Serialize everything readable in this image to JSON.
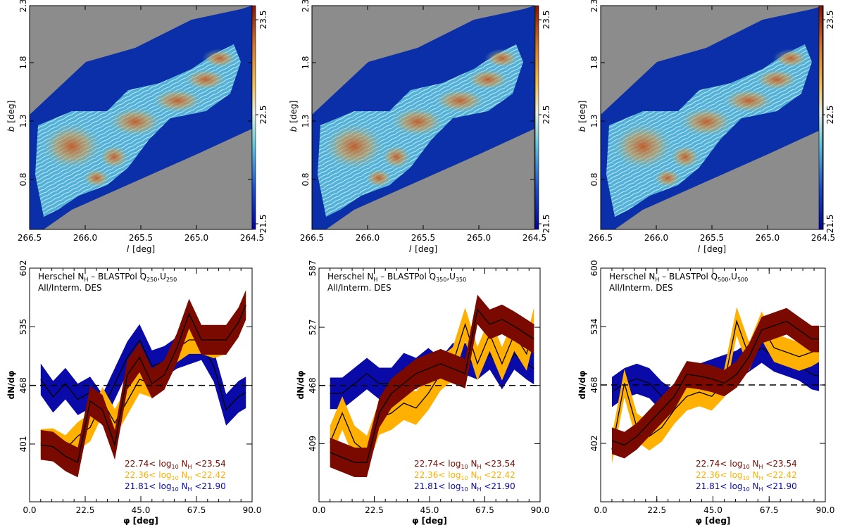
{
  "maps": {
    "xlabel_sym": "l",
    "xlabel_unit": "[deg]",
    "ylabel_sym": "b",
    "ylabel_unit": "[deg]",
    "xticks": [
      "266.5",
      "266.0",
      "265.5",
      "265.0",
      "264.5"
    ],
    "yticks": [
      "0.8",
      "1.3",
      "1.8",
      "2.3"
    ],
    "colorbar_ticks": [
      "21.5",
      "22.5",
      "23.5"
    ],
    "colors": {
      "background": "#8c8c8c",
      "low": "#0a2fa8",
      "mid": "#5ec8e0",
      "high": "#b8431e",
      "lines": "#ffffff"
    }
  },
  "chart_data": [
    {
      "type": "line",
      "title_line1_prefix": "Herschel N",
      "title_line1_sub": "H",
      "title_line1_mid": " – BLASTPol Q",
      "title_q_sub": "250",
      "title_u": ",U",
      "title_u_sub": "250",
      "title_line2": "All/Interm. DES",
      "xlabel": "φ [deg]",
      "ylabel": "dN/dφ",
      "xlim": [
        0,
        90
      ],
      "ylim": [
        335,
        602
      ],
      "xticks": [
        "0.0",
        "22.5",
        "45.0",
        "67.5",
        "90.0"
      ],
      "yticks": [
        "401",
        "468",
        "535",
        "602"
      ],
      "reference_value": 468,
      "x": [
        4.5,
        9.5,
        14.5,
        19.5,
        24.5,
        29.5,
        34.5,
        39.5,
        44.5,
        49.5,
        54.5,
        59.5,
        64.5,
        69.5,
        74.5,
        79.5,
        84.5,
        87.5
      ],
      "series": [
        {
          "name": "21.81< log10 NH <21.90",
          "color": "#0a0aa8",
          "values": [
            475,
            455,
            470,
            452,
            460,
            440,
            470,
            500,
            520,
            490,
            495,
            505,
            510,
            515,
            490,
            440,
            455,
            460
          ],
          "err": 18
        },
        {
          "name": "22.36< log10 NH <22.42",
          "color": "#ffb000",
          "values": [
            402,
            403,
            395,
            410,
            420,
            450,
            425,
            450,
            475,
            470,
            480,
            510,
            520,
            520,
            515,
            520,
            540,
            560
          ],
          "err": 16
        },
        {
          "name": "22.74< log10 NH <23.54",
          "color": "#7a0a00",
          "values": [
            400,
            398,
            387,
            380,
            450,
            440,
            400,
            480,
            500,
            470,
            480,
            510,
            550,
            520,
            520,
            520,
            540,
            560
          ],
          "err": 17
        }
      ],
      "legend": [
        {
          "range_lo": "22.74<",
          "range_hi": "<23.54",
          "color": "#7a0a00"
        },
        {
          "range_lo": "22.36<",
          "range_hi": "<22.42",
          "color": "#ffb000"
        },
        {
          "range_lo": "21.81<",
          "range_hi": "<21.90",
          "color": "#0a0aa8"
        }
      ]
    },
    {
      "type": "line",
      "title_line1_prefix": "Herschel N",
      "title_line1_sub": "H",
      "title_line1_mid": " – BLASTPol Q",
      "title_q_sub": "350",
      "title_u": ",U",
      "title_u_sub": "350",
      "title_line2": "All/Interm. DES",
      "xlabel": "φ [deg]",
      "ylabel": "dN/dφ",
      "xlim": [
        0,
        90
      ],
      "ylim": [
        350,
        587
      ],
      "xticks": [
        "0.0",
        "22.5",
        "45.0",
        "67.5",
        "90.0"
      ],
      "yticks": [
        "409",
        "468",
        "527",
        "587"
      ],
      "reference_value": 468,
      "x": [
        4.5,
        9.5,
        14.5,
        19.5,
        24.5,
        29.5,
        34.5,
        39.5,
        44.5,
        49.5,
        54.5,
        59.5,
        64.5,
        69.5,
        74.5,
        79.5,
        84.5,
        87.5
      ],
      "series": [
        {
          "name": "21.81< log10 NH <21.90",
          "color": "#0a0aa8",
          "values": [
            460,
            460,
            470,
            480,
            470,
            470,
            485,
            480,
            490,
            480,
            495,
            495,
            490,
            500,
            480,
            500,
            490,
            485
          ],
          "err": 16
        },
        {
          "name": "22.36< log10 NH <22.42",
          "color": "#ffb000",
          "values": [
            410,
            440,
            410,
            400,
            435,
            440,
            450,
            445,
            460,
            480,
            490,
            530,
            490,
            520,
            490,
            520,
            500,
            530
          ],
          "err": 17
        },
        {
          "name": "22.74< log10 NH <23.54",
          "color": "#7a0a00",
          "values": [
            400,
            395,
            390,
            390,
            440,
            460,
            470,
            480,
            485,
            490,
            485,
            480,
            545,
            530,
            535,
            528,
            520,
            515
          ],
          "err": 15
        }
      ],
      "legend": [
        {
          "range_lo": "22.74<",
          "range_hi": "<23.54",
          "color": "#7a0a00"
        },
        {
          "range_lo": "22.36<",
          "range_hi": "<22.42",
          "color": "#ffb000"
        },
        {
          "range_lo": "21.81<",
          "range_hi": "<21.90",
          "color": "#0a0aa8"
        }
      ]
    },
    {
      "type": "line",
      "title_line1_prefix": "Herschel N",
      "title_line1_sub": "H",
      "title_line1_mid": " – BLASTPol Q",
      "title_q_sub": "500",
      "title_u": ",U",
      "title_u_sub": "500",
      "title_line2": "All/Interm. DES",
      "xlabel": "φ [deg]",
      "ylabel": "dN/dφ",
      "xlim": [
        0,
        90
      ],
      "ylim": [
        336,
        600
      ],
      "xticks": [
        "0.0",
        "22.5",
        "45.0",
        "67.5",
        "90.0"
      ],
      "yticks": [
        "402",
        "468",
        "534",
        "600"
      ],
      "reference_value": 468,
      "x": [
        4.5,
        9.5,
        14.5,
        19.5,
        24.5,
        29.5,
        34.5,
        39.5,
        44.5,
        49.5,
        54.5,
        59.5,
        64.5,
        69.5,
        74.5,
        79.5,
        84.5,
        87.5
      ],
      "series": [
        {
          "name": "21.81< log10 NH <21.90",
          "color": "#0a0aa8",
          "values": [
            460,
            470,
            475,
            470,
            455,
            445,
            460,
            475,
            480,
            485,
            490,
            500,
            510,
            500,
            495,
            490,
            480,
            478
          ],
          "err": 17
        },
        {
          "name": "22.36< log10 NH <22.42",
          "color": "#ffb000",
          "values": [
            395,
            470,
            420,
            410,
            420,
            440,
            455,
            460,
            455,
            470,
            540,
            500,
            535,
            510,
            505,
            500,
            505,
            510
          ],
          "err": 16
        },
        {
          "name": "22.74< log10 NH <23.54",
          "color": "#7a0a00",
          "values": [
            405,
            400,
            410,
            425,
            440,
            455,
            480,
            478,
            475,
            470,
            480,
            500,
            530,
            535,
            540,
            530,
            520,
            520
          ],
          "err": 15
        }
      ],
      "legend": [
        {
          "range_lo": "22.74<",
          "range_hi": "<23.54",
          "color": "#7a0a00"
        },
        {
          "range_lo": "22.36<",
          "range_hi": "<22.42",
          "color": "#ffb000"
        },
        {
          "range_lo": "21.81<",
          "range_hi": "<21.90",
          "color": "#0a0aa8"
        }
      ]
    }
  ]
}
